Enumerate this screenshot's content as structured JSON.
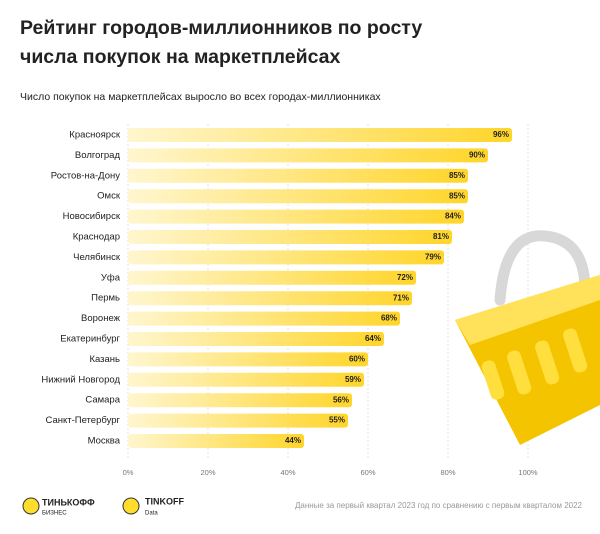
{
  "chart_data": {
    "type": "bar",
    "orientation": "horizontal",
    "title": [
      "Рейтинг городов-миллионников по росту",
      "числа покупок на маркетплейсах"
    ],
    "subtitle": "Число покупок на маркетплейсах выросло во всех городах-миллионниках",
    "categories": [
      "Красноярск",
      "Волгоград",
      "Ростов-на-Дону",
      "Омск",
      "Новосибирск",
      "Краснодар",
      "Челябинск",
      "Уфа",
      "Пермь",
      "Воронеж",
      "Екатеринбург",
      "Казань",
      "Нижний Новгород",
      "Самара",
      "Санкт-Петербург",
      "Москва"
    ],
    "values": [
      96,
      90,
      85,
      85,
      84,
      81,
      79,
      72,
      71,
      68,
      64,
      60,
      59,
      56,
      55,
      44
    ],
    "value_labels": [
      "96%",
      "90%",
      "85%",
      "85%",
      "84%",
      "81%",
      "79%",
      "72%",
      "71%",
      "68%",
      "64%",
      "60%",
      "59%",
      "56%",
      "55%",
      "44%"
    ],
    "color": "#ffd52a",
    "xlim": [
      0,
      100
    ],
    "xticks": [
      {
        "value": 0,
        "label": "0%"
      },
      {
        "value": 20,
        "label": "20%"
      },
      {
        "value": 40,
        "label": "40%"
      },
      {
        "value": 60,
        "label": "60%"
      },
      {
        "value": 80,
        "label": "80%"
      },
      {
        "value": 100,
        "label": "100%"
      }
    ],
    "grid": true
  },
  "footer": {
    "logo_1": [
      "ТИНЬКОФФ",
      "БИЗНЕС"
    ],
    "logo_2": [
      "TINKOFF",
      "Data"
    ],
    "note": "Данные за первый квартал 2023 год по сравнению с первым кварталом 2022"
  }
}
